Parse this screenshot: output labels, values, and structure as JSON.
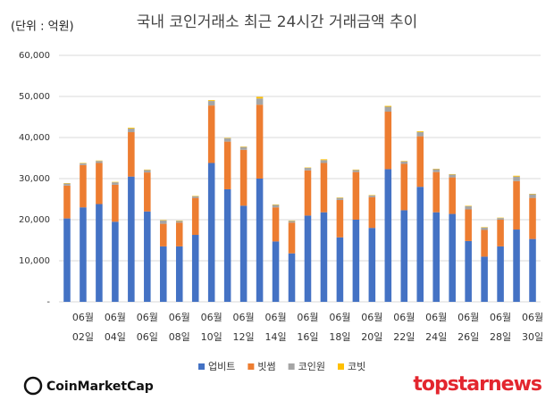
{
  "chart_data": {
    "type": "stacked_bar",
    "title": "국내 코인거래소 최근 24시간 거래금액 추이",
    "unit_label": "(단위 : 억원)",
    "categories": [
      null,
      [
        "06월",
        "02일"
      ],
      null,
      [
        "06월",
        "04일"
      ],
      null,
      [
        "06월",
        "06일"
      ],
      null,
      [
        "06월",
        "08일"
      ],
      null,
      [
        "06월",
        "10일"
      ],
      null,
      [
        "06월",
        "12일"
      ],
      null,
      [
        "06월",
        "14일"
      ],
      null,
      [
        "06월",
        "16일"
      ],
      null,
      [
        "06월",
        "18일"
      ],
      null,
      [
        "06월",
        "20일"
      ],
      null,
      [
        "06월",
        "22일"
      ],
      null,
      [
        "06월",
        "24일"
      ],
      null,
      [
        "06월",
        "26일"
      ],
      null,
      [
        "06월",
        "28일"
      ],
      null,
      [
        "06월",
        "30일"
      ]
    ],
    "series": [
      {
        "name": "업비트",
        "color": "#4472c4",
        "values": [
          20300,
          23000,
          23800,
          19500,
          30500,
          22000,
          13500,
          13500,
          16300,
          33800,
          27400,
          23400,
          30000,
          14700,
          11800,
          21000,
          21800,
          15700,
          20000,
          18000,
          32300,
          22300,
          28000,
          21800,
          21400,
          14800,
          11000,
          13500,
          17600,
          15300
        ]
      },
      {
        "name": "빗썸",
        "color": "#ed7d31",
        "values": [
          8000,
          10300,
          10000,
          9000,
          10800,
          9500,
          5500,
          5800,
          9000,
          14000,
          11600,
          13600,
          18000,
          8300,
          7500,
          11000,
          12000,
          9100,
          11600,
          7500,
          14000,
          11300,
          12300,
          9800,
          8900,
          7700,
          6500,
          6500,
          11800,
          10000
        ]
      },
      {
        "name": "코인원",
        "color": "#a5a5a5",
        "values": [
          500,
          400,
          500,
          600,
          900,
          600,
          800,
          400,
          400,
          1100,
          800,
          700,
          1500,
          600,
          400,
          600,
          700,
          500,
          500,
          400,
          1200,
          600,
          1000,
          700,
          700,
          800,
          600,
          400,
          1100,
          900
        ]
      },
      {
        "name": "코빗",
        "color": "#ffc000",
        "values": [
          100,
          100,
          100,
          100,
          200,
          100,
          100,
          100,
          100,
          200,
          100,
          100,
          400,
          100,
          100,
          100,
          200,
          100,
          100,
          100,
          200,
          100,
          200,
          100,
          100,
          100,
          100,
          100,
          200,
          100
        ]
      }
    ],
    "ylim": [
      0,
      60000
    ],
    "yticks": [
      {
        "value": 0,
        "label": "-"
      },
      {
        "value": 10000,
        "label": "10,000"
      },
      {
        "value": 20000,
        "label": "20,000"
      },
      {
        "value": 30000,
        "label": "30,000"
      },
      {
        "value": 40000,
        "label": "40,000"
      },
      {
        "value": 50000,
        "label": "50,000"
      },
      {
        "value": 60000,
        "label": "60,000"
      }
    ],
    "grid": true,
    "legend": "bottom"
  },
  "branding": {
    "left": "CoinMarketCap",
    "right": "topstarnews"
  }
}
